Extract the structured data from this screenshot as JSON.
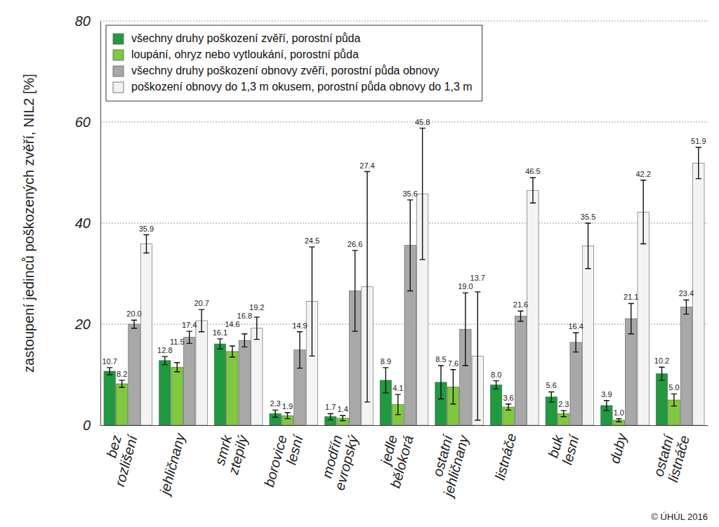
{
  "chart_data": {
    "type": "bar",
    "y_label": "zastoupení jedinců poškozených zvěří, NIL2 [%]",
    "annotation": "© ÚHÚL 2016",
    "categories": [
      "bez rozlišení",
      "jehličnany",
      "smrk ztepilý",
      "borovice lesní",
      "modřín evropský",
      "jedle bělokorá",
      "ostatní jehličnany",
      "listnáče",
      "buk lesní",
      "duby",
      "ostatní listnáče"
    ],
    "series": [
      {
        "name": "všechny druhy poškození zvěří, porostní půda",
        "color": "#1f9a40",
        "values": [
          10.7,
          12.8,
          16.1,
          2.3,
          1.7,
          8.9,
          8.5,
          8.0,
          5.6,
          3.9,
          10.2
        ],
        "value_labels": [
          "10.7",
          "12.8",
          "16.1",
          "2.3",
          "1.7",
          "8.9",
          "8.5",
          "8.0",
          "5.6",
          "3.9",
          "10.2"
        ],
        "errors": [
          0.7,
          0.8,
          1.0,
          0.7,
          0.6,
          2.5,
          3.3,
          0.8,
          1.0,
          1.0,
          1.3
        ]
      },
      {
        "name": "loupání, ohryz nebo vytloukání, porostní půda",
        "color": "#80c83c",
        "values": [
          8.2,
          11.5,
          14.6,
          1.9,
          1.4,
          4.1,
          7.6,
          3.6,
          2.3,
          1.0,
          5.0
        ],
        "value_labels": [
          "8.2",
          "11.5",
          "14.6",
          "1.9",
          "1.4",
          "4.1",
          "7.6",
          "3.6",
          "2.3",
          "1.0",
          "5.0"
        ],
        "errors": [
          0.7,
          0.9,
          1.1,
          0.6,
          0.5,
          2.0,
          3.4,
          0.6,
          0.6,
          0.3,
          1.2
        ]
      },
      {
        "name": "všechny druhy poškození obnovy zvěří, porostní půda obnovy",
        "color": "#a8a8a8",
        "values": [
          20.0,
          17.4,
          16.8,
          14.9,
          26.6,
          35.6,
          19.0,
          21.6,
          16.4,
          21.1,
          23.4
        ],
        "value_labels": [
          "20.0",
          "17.4",
          "16.8",
          "14.9",
          "26.6",
          "35.6",
          "19.0",
          "21.6",
          "16.4",
          "21.1",
          "23.4"
        ],
        "errors": [
          0.8,
          1.2,
          1.3,
          3.6,
          8.0,
          9.0,
          7.2,
          1.0,
          1.9,
          3.0,
          1.4
        ]
      },
      {
        "name": "poškození obnovy do 1,3 m okusem, porostní půda obnovy do 1,3 m",
        "color": "#f3f3f3",
        "values": [
          35.9,
          20.7,
          19.2,
          24.5,
          27.4,
          45.8,
          13.7,
          46.5,
          35.5,
          42.2,
          51.9
        ],
        "value_labels": [
          "35.9",
          "20.7",
          "19.2",
          "24.5",
          "27.4",
          "45.8",
          "13.7",
          "46.5",
          "35.5",
          "42.2",
          "51.9"
        ],
        "errors": [
          1.8,
          2.2,
          2.2,
          10.8,
          22.8,
          13.0,
          12.7,
          2.5,
          4.5,
          6.3,
          3.1
        ]
      }
    ],
    "ylim": [
      0,
      80
    ],
    "yticks": [
      0,
      20,
      40,
      60,
      80
    ],
    "grid": true,
    "data_labels": true,
    "legend": "upper left"
  }
}
